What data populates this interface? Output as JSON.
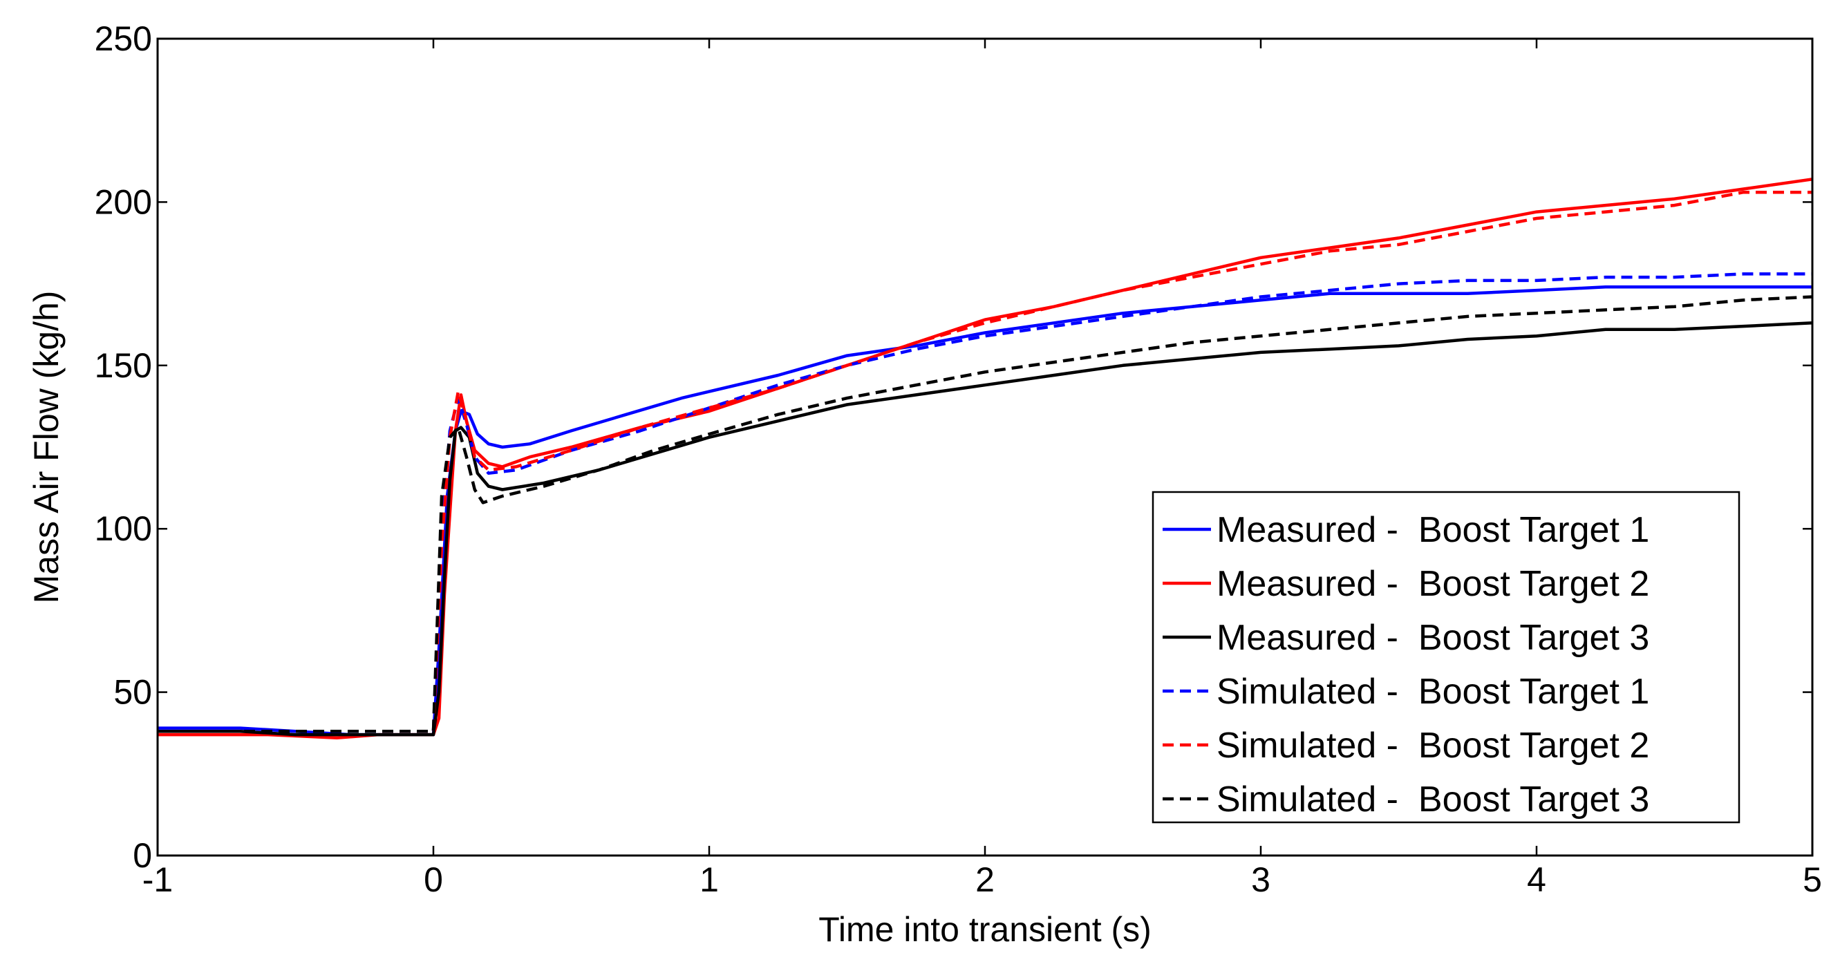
{
  "chart_data": {
    "type": "line",
    "title": "",
    "xlabel": "Time into transient (s)",
    "ylabel": "Mass Air Flow (kg/h)",
    "xlim": [
      -1,
      5
    ],
    "ylim": [
      0,
      250
    ],
    "xticks": [
      -1,
      0,
      1,
      2,
      3,
      4,
      5
    ],
    "yticks": [
      0,
      50,
      100,
      150,
      200,
      250
    ],
    "grid": false,
    "legend_position": "bottom-right",
    "colors": {
      "blue": "#0000ff",
      "red": "#ff0000",
      "black": "#000000"
    },
    "series": [
      {
        "name": "Measured -  Boost Target 1",
        "color": "#0000ff",
        "dash": "solid",
        "points": [
          [
            -1,
            39
          ],
          [
            -0.7,
            39
          ],
          [
            -0.5,
            38
          ],
          [
            -0.3,
            37
          ],
          [
            0,
            37
          ],
          [
            0.02,
            63
          ],
          [
            0.05,
            110
          ],
          [
            0.08,
            130
          ],
          [
            0.1,
            136
          ],
          [
            0.13,
            135
          ],
          [
            0.16,
            129
          ],
          [
            0.2,
            126
          ],
          [
            0.25,
            125
          ],
          [
            0.35,
            126
          ],
          [
            0.5,
            130
          ],
          [
            0.7,
            135
          ],
          [
            0.9,
            140
          ],
          [
            1.0,
            142
          ],
          [
            1.25,
            147
          ],
          [
            1.5,
            153
          ],
          [
            1.75,
            156
          ],
          [
            2.0,
            160
          ],
          [
            2.25,
            163
          ],
          [
            2.5,
            166
          ],
          [
            2.75,
            168
          ],
          [
            3.0,
            170
          ],
          [
            3.25,
            172
          ],
          [
            3.5,
            172
          ],
          [
            3.75,
            172
          ],
          [
            4.0,
            173
          ],
          [
            4.25,
            174
          ],
          [
            4.5,
            174
          ],
          [
            4.75,
            174
          ],
          [
            5.0,
            174
          ]
        ]
      },
      {
        "name": "Measured -  Boost Target 2",
        "color": "#ff0000",
        "dash": "solid",
        "points": [
          [
            -1,
            37
          ],
          [
            -0.6,
            37
          ],
          [
            -0.35,
            36
          ],
          [
            -0.2,
            37
          ],
          [
            0,
            37
          ],
          [
            0.02,
            42
          ],
          [
            0.04,
            80
          ],
          [
            0.06,
            105
          ],
          [
            0.08,
            130
          ],
          [
            0.1,
            141
          ],
          [
            0.12,
            133
          ],
          [
            0.15,
            124
          ],
          [
            0.2,
            120
          ],
          [
            0.25,
            119
          ],
          [
            0.35,
            122
          ],
          [
            0.5,
            125
          ],
          [
            0.75,
            131
          ],
          [
            1.0,
            136
          ],
          [
            1.25,
            143
          ],
          [
            1.5,
            150
          ],
          [
            1.75,
            157
          ],
          [
            2.0,
            164
          ],
          [
            2.25,
            168
          ],
          [
            2.5,
            173
          ],
          [
            2.75,
            178
          ],
          [
            3.0,
            183
          ],
          [
            3.25,
            186
          ],
          [
            3.5,
            189
          ],
          [
            3.75,
            193
          ],
          [
            4.0,
            197
          ],
          [
            4.25,
            199
          ],
          [
            4.5,
            201
          ],
          [
            4.75,
            204
          ],
          [
            5.0,
            207
          ]
        ]
      },
      {
        "name": "Measured -  Boost Target 3",
        "color": "#000000",
        "dash": "solid",
        "points": [
          [
            -1,
            38
          ],
          [
            -0.7,
            38
          ],
          [
            -0.5,
            37
          ],
          [
            0,
            37
          ],
          [
            0.02,
            50
          ],
          [
            0.04,
            85
          ],
          [
            0.06,
            115
          ],
          [
            0.08,
            130
          ],
          [
            0.1,
            131
          ],
          [
            0.13,
            128
          ],
          [
            0.16,
            117
          ],
          [
            0.2,
            113
          ],
          [
            0.25,
            112
          ],
          [
            0.4,
            114
          ],
          [
            0.6,
            118
          ],
          [
            0.8,
            123
          ],
          [
            1.0,
            128
          ],
          [
            1.25,
            133
          ],
          [
            1.5,
            138
          ],
          [
            1.75,
            141
          ],
          [
            2.0,
            144
          ],
          [
            2.25,
            147
          ],
          [
            2.5,
            150
          ],
          [
            2.75,
            152
          ],
          [
            3.0,
            154
          ],
          [
            3.25,
            155
          ],
          [
            3.5,
            156
          ],
          [
            3.75,
            158
          ],
          [
            4.0,
            159
          ],
          [
            4.25,
            161
          ],
          [
            4.5,
            161
          ],
          [
            4.75,
            162
          ],
          [
            5.0,
            163
          ]
        ]
      },
      {
        "name": "Simulated -  Boost Target 1",
        "color": "#0000ff",
        "dash": "dashed",
        "points": [
          [
            -1,
            38
          ],
          [
            -0.5,
            38
          ],
          [
            0,
            38
          ],
          [
            0.03,
            100
          ],
          [
            0.06,
            130
          ],
          [
            0.09,
            140
          ],
          [
            0.12,
            132
          ],
          [
            0.15,
            122
          ],
          [
            0.2,
            117
          ],
          [
            0.3,
            118
          ],
          [
            0.5,
            124
          ],
          [
            0.75,
            130
          ],
          [
            1.0,
            137
          ],
          [
            1.25,
            144
          ],
          [
            1.5,
            150
          ],
          [
            1.75,
            155
          ],
          [
            2.0,
            159
          ],
          [
            2.25,
            162
          ],
          [
            2.5,
            165
          ],
          [
            2.75,
            168
          ],
          [
            3.0,
            171
          ],
          [
            3.25,
            173
          ],
          [
            3.5,
            175
          ],
          [
            3.75,
            176
          ],
          [
            4.0,
            176
          ],
          [
            4.25,
            177
          ],
          [
            4.5,
            177
          ],
          [
            4.75,
            178
          ],
          [
            5.0,
            178
          ]
        ]
      },
      {
        "name": "Simulated -  Boost Target 2",
        "color": "#ff0000",
        "dash": "dashed",
        "points": [
          [
            -1,
            38
          ],
          [
            -0.5,
            38
          ],
          [
            0,
            38
          ],
          [
            0.03,
            95
          ],
          [
            0.06,
            128
          ],
          [
            0.09,
            142
          ],
          [
            0.12,
            133
          ],
          [
            0.15,
            122
          ],
          [
            0.2,
            118
          ],
          [
            0.3,
            119
          ],
          [
            0.5,
            124
          ],
          [
            0.75,
            131
          ],
          [
            1.0,
            137
          ],
          [
            1.25,
            143
          ],
          [
            1.5,
            150
          ],
          [
            1.75,
            157
          ],
          [
            2.0,
            163
          ],
          [
            2.25,
            168
          ],
          [
            2.5,
            173
          ],
          [
            2.75,
            177
          ],
          [
            3.0,
            181
          ],
          [
            3.25,
            185
          ],
          [
            3.5,
            187
          ],
          [
            3.75,
            191
          ],
          [
            4.0,
            195
          ],
          [
            4.25,
            197
          ],
          [
            4.5,
            199
          ],
          [
            4.75,
            203
          ],
          [
            5.0,
            203
          ]
        ]
      },
      {
        "name": "Simulated -  Boost Target 3",
        "color": "#000000",
        "dash": "dashed",
        "points": [
          [
            -1,
            38
          ],
          [
            -0.5,
            38
          ],
          [
            0,
            38
          ],
          [
            0.03,
            110
          ],
          [
            0.06,
            128
          ],
          [
            0.09,
            131
          ],
          [
            0.12,
            122
          ],
          [
            0.15,
            112
          ],
          [
            0.18,
            108
          ],
          [
            0.25,
            110
          ],
          [
            0.4,
            113
          ],
          [
            0.6,
            118
          ],
          [
            0.8,
            124
          ],
          [
            1.0,
            129
          ],
          [
            1.25,
            135
          ],
          [
            1.5,
            140
          ],
          [
            1.75,
            144
          ],
          [
            2.0,
            148
          ],
          [
            2.25,
            151
          ],
          [
            2.5,
            154
          ],
          [
            2.75,
            157
          ],
          [
            3.0,
            159
          ],
          [
            3.25,
            161
          ],
          [
            3.5,
            163
          ],
          [
            3.75,
            165
          ],
          [
            4.0,
            166
          ],
          [
            4.25,
            167
          ],
          [
            4.5,
            168
          ],
          [
            4.75,
            170
          ],
          [
            5.0,
            171
          ]
        ]
      }
    ]
  }
}
